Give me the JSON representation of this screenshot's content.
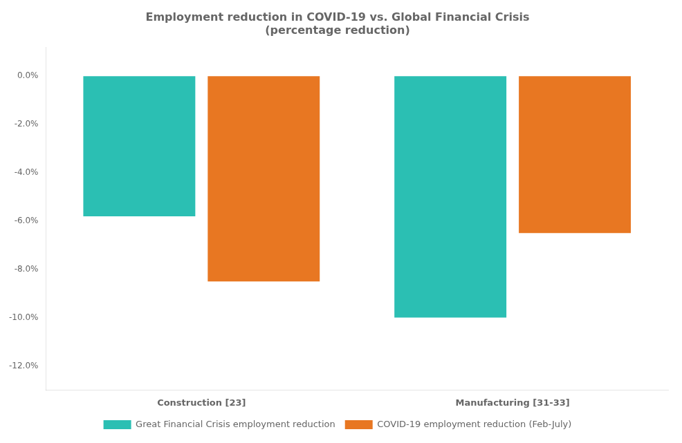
{
  "chart_data": {
    "type": "bar",
    "title": "Employment reduction in COVID-19 vs. Global Financial Crisis\n(percentage reduction)",
    "categories": [
      "Construction [23]",
      "Manufacturing [31-33]"
    ],
    "series": [
      {
        "name": "Great Financial Crisis employment reduction",
        "color": "#2bbfb3",
        "values": [
          -5.8,
          -10.0
        ]
      },
      {
        "name": "COVID-19 employment reduction (Feb-July)",
        "color": "#E87722",
        "values": [
          -8.5,
          -6.5
        ]
      }
    ],
    "ylim": [
      -13.0,
      1.2
    ],
    "yticks": [
      {
        "value": 0.0,
        "label": "0.0%"
      },
      {
        "value": -2.0,
        "label": "-2.0%"
      },
      {
        "value": -4.0,
        "label": "-4.0%"
      },
      {
        "value": -6.0,
        "label": "-6.0%"
      },
      {
        "value": -8.0,
        "label": "-8.0%"
      },
      {
        "value": -10.0,
        "label": "-10.0%"
      },
      {
        "value": -12.0,
        "label": "-12.0%"
      }
    ],
    "grid": false,
    "legend": "bottom"
  }
}
